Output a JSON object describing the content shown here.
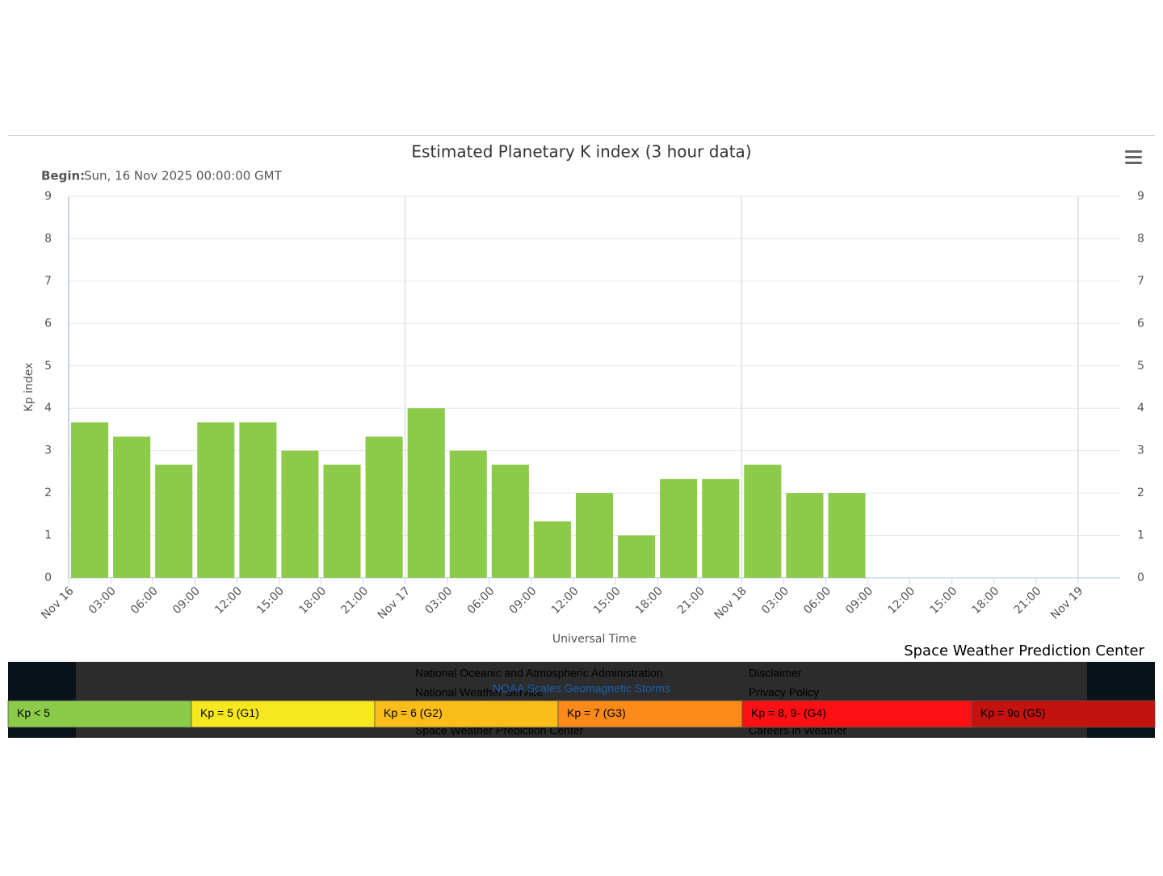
{
  "chart_data": {
    "type": "bar",
    "title": "Estimated Planetary K index (3 hour data)",
    "subtitle_label": "Begin:",
    "subtitle": "Sun, 16 Nov 2025 00:00:00 GMT",
    "y_label": "Kp index",
    "x_label": "Universal Time",
    "credit": "Space Weather Prediction Center",
    "categories": [
      "Nov 16",
      "03:00",
      "06:00",
      "09:00",
      "12:00",
      "15:00",
      "18:00",
      "21:00",
      "Nov 17",
      "03:00",
      "06:00",
      "09:00",
      "12:00",
      "15:00",
      "18:00",
      "21:00",
      "Nov 18",
      "03:00",
      "06:00",
      "09:00",
      "12:00",
      "15:00",
      "18:00",
      "21:00",
      "Nov 19"
    ],
    "values": [
      3.67,
      3.33,
      2.67,
      3.67,
      3.67,
      3.0,
      2.67,
      3.33,
      4.0,
      3.0,
      2.67,
      1.33,
      2.0,
      1.0,
      2.33,
      2.33,
      2.67,
      2.0,
      2.0,
      null,
      null,
      null,
      null,
      null,
      null
    ],
    "color": "#8cca4a",
    "ylim": [
      0,
      9
    ],
    "yticks": [
      0,
      1,
      2,
      3,
      4,
      5,
      6,
      7,
      8,
      9
    ],
    "grid": true,
    "legend": [
      {
        "label": "Kp < 5",
        "color": "#8cca4a"
      },
      {
        "label": "Kp = 5 (G1)",
        "color": "#f6e81f"
      },
      {
        "label": "Kp = 6 (G2)",
        "color": "#fbbd19"
      },
      {
        "label": "Kp = 7 (G3)",
        "color": "#fb8a18"
      },
      {
        "label": "Kp = 8, 9- (G4)",
        "color": "#fd1014"
      },
      {
        "label": "Kp = 9o (G5)",
        "color": "#c4120f"
      }
    ]
  },
  "footer": {
    "links_left": [
      "National Oceanic and Atmospheric Administration",
      "National Weather Service",
      "Space Weather Prediction Center"
    ],
    "links_right": [
      "Disclaimer",
      "Privacy Policy",
      "Careers in Weather"
    ],
    "scales_link": "NOAA Scales Geomagnetic Storms"
  }
}
